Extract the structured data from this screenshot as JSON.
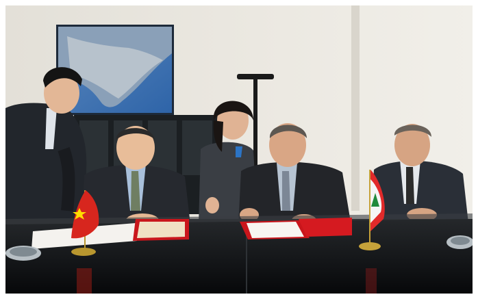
{
  "scene": {
    "kind": "photograph",
    "subject": "signing-ceremony",
    "people_count": 5,
    "flags": [
      "china",
      "lebanon"
    ]
  },
  "colors": {
    "wall": "#e9e6df",
    "table": "#101214",
    "china_red": "#d7261e",
    "china_star": "#ffde00",
    "lebanon_red": "#e12a2a",
    "lebanon_cedar": "#1f8a3b",
    "folder_red": "#c9161c",
    "map_sea": "#3f79b9"
  }
}
